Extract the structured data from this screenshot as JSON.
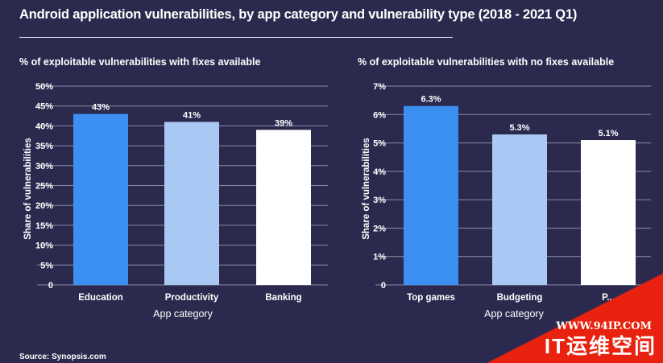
{
  "title": "Android application vulnerabilities, by app category and vulnerability type (2018 - 2021 Q1)",
  "source": "Source: Synopsis.com",
  "watermark": {
    "url": "WWW.94IP.COM",
    "name": "IT运维空间"
  },
  "colors": {
    "background": "#2b2a4e",
    "bar_1": "#3b8ff0",
    "bar_2": "#a9c9f4",
    "bar_3": "#ffffff",
    "grid": "#8a89a6",
    "text": "#ffffff",
    "watermark_red": "#e8220f"
  },
  "chart_data": [
    {
      "type": "bar",
      "title": "% of exploitable vulnerabilities with fixes available",
      "categories": [
        "Education",
        "Productivity",
        "Banking"
      ],
      "values": [
        43,
        41,
        39
      ],
      "value_labels": [
        "43%",
        "41%",
        "39%"
      ],
      "xlabel": "App category",
      "ylabel": "Share of vulnerabilities",
      "ylim": [
        0,
        50
      ],
      "yticks": [
        0,
        5,
        10,
        15,
        20,
        25,
        30,
        35,
        40,
        45,
        50
      ],
      "ytick_labels": [
        "0",
        "5%",
        "10%",
        "15%",
        "20%",
        "25%",
        "30%",
        "35%",
        "40%",
        "45%",
        "50%"
      ],
      "grid": true
    },
    {
      "type": "bar",
      "title": "% of exploitable vulnerabilities with no fixes available",
      "categories": [
        "Top games",
        "Budgeting",
        "P..."
      ],
      "values": [
        6.3,
        5.3,
        5.1
      ],
      "value_labels": [
        "6.3%",
        "5.3%",
        "5.1%"
      ],
      "xlabel": "App category",
      "ylabel": "Share of vulnerabilities",
      "ylim": [
        0,
        7
      ],
      "yticks": [
        0,
        1,
        2,
        3,
        4,
        5,
        6,
        7
      ],
      "ytick_labels": [
        "0",
        "1%",
        "2%",
        "3%",
        "4%",
        "5%",
        "6%",
        "7%"
      ],
      "grid": true
    }
  ]
}
